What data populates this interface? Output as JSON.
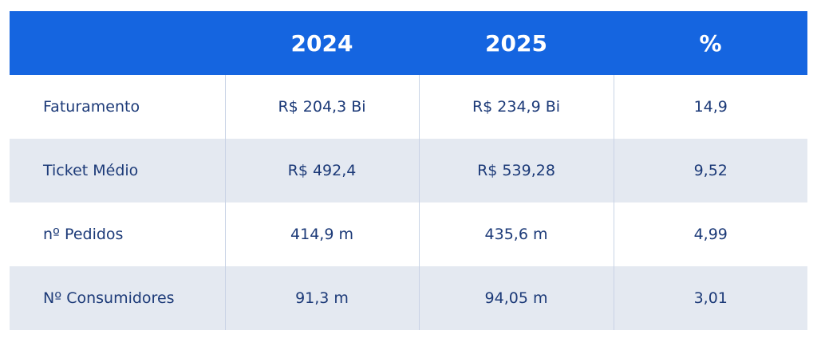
{
  "colors": {
    "header_bg": "#1565E0",
    "header_text": "#ffffff",
    "body_text": "#1C3A78",
    "stripe_bg": "#E4E9F1",
    "divider": "#C9D3E6"
  },
  "chart_data": {
    "type": "table",
    "columns": [
      "",
      "2024",
      "2025",
      "%"
    ],
    "rows": [
      [
        "Faturamento",
        "R$ 204,3 Bi",
        "R$ 234,9 Bi",
        "14,9"
      ],
      [
        "Ticket Médio",
        "R$ 492,4",
        "R$ 539,28",
        "9,52"
      ],
      [
        "nº Pedidos",
        "414,9 m",
        "435,6 m",
        "4,99"
      ],
      [
        "Nº Consumidores",
        "91,3 m",
        "94,05 m",
        "3,01"
      ]
    ]
  }
}
